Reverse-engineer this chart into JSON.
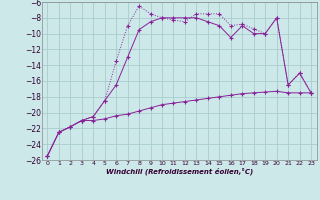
{
  "xlabel": "Windchill (Refroidissement éolien,°C)",
  "background_color": "#cce8e8",
  "grid_color": "#aacccc",
  "line_color": "#882299",
  "xlim": [
    -0.5,
    23.5
  ],
  "ylim": [
    -26,
    -6
  ],
  "yticks": [
    -26,
    -24,
    -22,
    -20,
    -18,
    -16,
    -14,
    -12,
    -10,
    -8,
    -6
  ],
  "xticks": [
    0,
    1,
    2,
    3,
    4,
    5,
    6,
    7,
    8,
    9,
    10,
    11,
    12,
    13,
    14,
    15,
    16,
    17,
    18,
    19,
    20,
    21,
    22,
    23
  ],
  "series1_x": [
    0,
    1,
    2,
    3,
    4,
    5,
    6,
    7,
    8,
    9,
    10,
    11,
    12,
    13,
    14,
    15,
    16,
    17,
    18,
    19,
    20,
    21,
    22,
    23
  ],
  "series1_y": [
    -25.5,
    -22.5,
    -21.8,
    -21.0,
    -21.0,
    -20.8,
    -20.4,
    -20.2,
    -19.8,
    -19.4,
    -19.0,
    -18.8,
    -18.6,
    -18.4,
    -18.2,
    -18.0,
    -17.8,
    -17.6,
    -17.5,
    -17.4,
    -17.3,
    -17.5,
    -17.5,
    -17.5
  ],
  "series2_x": [
    0,
    1,
    2,
    3,
    4,
    5,
    6,
    7,
    8,
    9,
    10,
    11,
    12,
    13,
    14,
    15,
    16,
    17,
    18,
    19,
    20,
    21,
    22,
    23
  ],
  "series2_y": [
    -25.5,
    -22.5,
    -21.8,
    -21.0,
    -20.5,
    -18.5,
    -13.5,
    -9.0,
    -6.5,
    -7.5,
    -8.0,
    -8.3,
    -8.5,
    -7.5,
    -7.5,
    -7.5,
    -9.0,
    -8.8,
    -9.4,
    -10.0,
    -8.0,
    -16.5,
    -15.0,
    -17.5
  ],
  "series3_x": [
    0,
    1,
    2,
    3,
    4,
    5,
    6,
    7,
    8,
    9,
    10,
    11,
    12,
    13,
    14,
    15,
    16,
    17,
    18,
    19,
    20,
    21,
    22,
    23
  ],
  "series3_y": [
    -25.5,
    -22.5,
    -21.8,
    -21.0,
    -20.5,
    -18.5,
    -16.5,
    -13.0,
    -9.5,
    -8.5,
    -8.0,
    -8.0,
    -8.0,
    -8.0,
    -8.5,
    -9.0,
    -10.5,
    -9.0,
    -10.0,
    -10.0,
    -8.0,
    -16.5,
    -15.0,
    -17.5
  ]
}
